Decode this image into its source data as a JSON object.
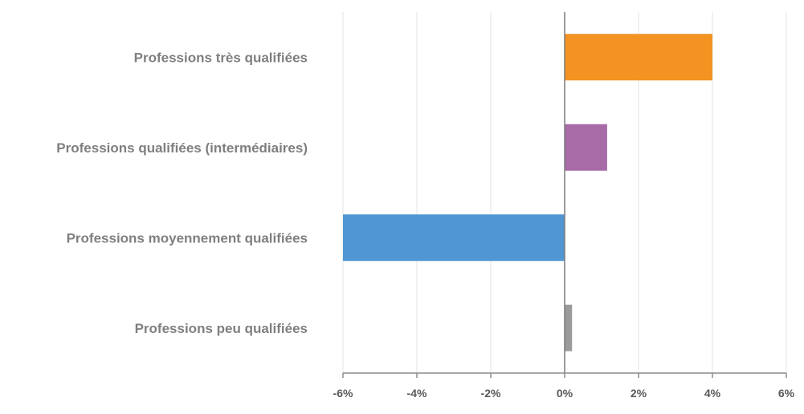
{
  "chart_data": {
    "type": "bar",
    "orientation": "horizontal",
    "title": "",
    "xlabel": "",
    "ylabel": "",
    "xlim": [
      -6,
      6
    ],
    "x_ticks": [
      -6,
      -4,
      -2,
      0,
      2,
      4,
      6
    ],
    "x_tick_labels": [
      "-6%",
      "-4%",
      "-2%",
      "0%",
      "2%",
      "4%",
      "6%"
    ],
    "unit": "%",
    "grid": "vertical",
    "legend": "none",
    "categories": [
      "Professions très qualifiées",
      "Professions qualifiées (intermédiaires)",
      "Professions moyennement qualifiées",
      "Professions peu qualifiées"
    ],
    "values": [
      4.0,
      1.15,
      -6.0,
      0.2
    ],
    "colors": [
      "#f39322",
      "#a86ba8",
      "#5096d2",
      "#9b9b9b"
    ]
  }
}
